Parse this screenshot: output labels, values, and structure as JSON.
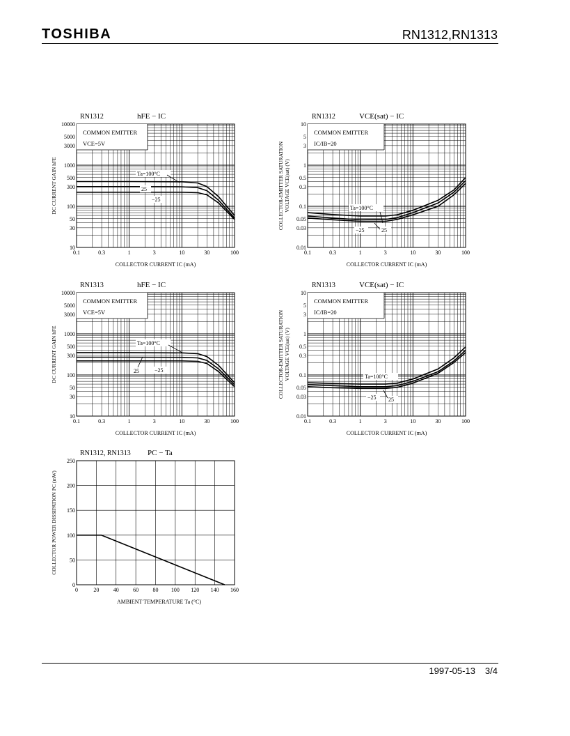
{
  "header": {
    "brand": "TOSHIBA",
    "part": "RN1312,RN1313"
  },
  "footer": {
    "date": "1997-05-13",
    "page": "3/4"
  },
  "chart_data": [
    {
      "id": "c1",
      "type": "line",
      "device": "RN1312",
      "title": "hFE − IC",
      "xlabel": "COLLECTOR CURRENT  IC  (mA)",
      "ylabel": "DC CURRENT GAIN  hFE",
      "xscale": "log",
      "yscale": "log",
      "xlim": [
        0.1,
        100
      ],
      "ylim": [
        10,
        10000
      ],
      "xticks": [
        0.1,
        0.3,
        1,
        3,
        10,
        30,
        100
      ],
      "xticklabels": [
        "0.1",
        "0.3",
        "1",
        "3",
        "10",
        "30",
        "100"
      ],
      "yticks": [
        10,
        30,
        50,
        100,
        300,
        500,
        1000,
        3000,
        5000,
        10000
      ],
      "yticklabels": [
        "10",
        "30",
        "50",
        "100",
        "300",
        "500",
        "1000",
        "3000",
        "5000",
        "10000"
      ],
      "annotations": [
        "COMMON EMITTER",
        "VCE=5V"
      ],
      "series": [
        {
          "name": "Ta=100°C",
          "x": [
            0.1,
            1,
            10,
            20,
            30,
            50,
            100
          ],
          "y": [
            400,
            400,
            395,
            370,
            300,
            170,
            60
          ]
        },
        {
          "name": "25",
          "x": [
            0.1,
            1,
            10,
            20,
            30,
            50,
            100
          ],
          "y": [
            300,
            300,
            298,
            285,
            240,
            140,
            52
          ]
        },
        {
          "name": "−25",
          "x": [
            0.1,
            1,
            10,
            20,
            30,
            50,
            100
          ],
          "y": [
            220,
            220,
            220,
            215,
            190,
            120,
            48
          ]
        }
      ]
    },
    {
      "id": "c2",
      "type": "line",
      "device": "RN1312",
      "title": "VCE(sat) − IC",
      "xlabel": "COLLECTOR CURRENT  IC  (mA)",
      "ylabel": "COLLECTOR-EMITTER SATURATION VOLTAGE  VCE(sat)  (V)",
      "xscale": "log",
      "yscale": "log",
      "xlim": [
        0.1,
        100
      ],
      "ylim": [
        0.01,
        10
      ],
      "xticks": [
        0.1,
        0.3,
        1,
        3,
        10,
        30,
        100
      ],
      "xticklabels": [
        "0.1",
        "0.3",
        "1",
        "3",
        "10",
        "30",
        "100"
      ],
      "yticks": [
        0.01,
        0.03,
        0.05,
        0.1,
        0.3,
        0.5,
        1,
        3,
        5,
        10
      ],
      "yticklabels": [
        "0.01",
        "0.03",
        "0.05",
        "0.1",
        "0.3",
        "0.5",
        "1",
        "3",
        "5",
        "10"
      ],
      "annotations": [
        "COMMON EMITTER",
        "IC/IB=20"
      ],
      "series": [
        {
          "name": "Ta=100°C",
          "x": [
            0.1,
            0.3,
            1,
            3,
            5,
            10,
            30,
            60,
            100
          ],
          "y": [
            0.07,
            0.063,
            0.058,
            0.058,
            0.062,
            0.08,
            0.14,
            0.25,
            0.5
          ]
        },
        {
          "name": "25",
          "x": [
            0.1,
            0.3,
            1,
            3,
            5,
            10,
            30,
            60,
            100
          ],
          "y": [
            0.058,
            0.052,
            0.047,
            0.048,
            0.053,
            0.07,
            0.12,
            0.22,
            0.42
          ]
        },
        {
          "name": "−25",
          "x": [
            0.1,
            0.3,
            1,
            3,
            5,
            10,
            30,
            60,
            100
          ],
          "y": [
            0.052,
            0.047,
            0.043,
            0.043,
            0.048,
            0.062,
            0.1,
            0.19,
            0.36
          ]
        }
      ]
    },
    {
      "id": "c3",
      "type": "line",
      "device": "RN1313",
      "title": "hFE − IC",
      "xlabel": "COLLECTOR CURRENT  IC  (mA)",
      "ylabel": "DC CURRENT GAIN  hFE",
      "xscale": "log",
      "yscale": "log",
      "xlim": [
        0.1,
        100
      ],
      "ylim": [
        10,
        10000
      ],
      "xticks": [
        0.1,
        0.3,
        1,
        3,
        10,
        30,
        100
      ],
      "xticklabels": [
        "0.1",
        "0.3",
        "1",
        "3",
        "10",
        "30",
        "100"
      ],
      "yticks": [
        10,
        30,
        50,
        100,
        300,
        500,
        1000,
        3000,
        5000,
        10000
      ],
      "yticklabels": [
        "10",
        "30",
        "50",
        "100",
        "300",
        "500",
        "1000",
        "3000",
        "5000",
        "10000"
      ],
      "annotations": [
        "COMMON EMITTER",
        "VCE=5V"
      ],
      "series": [
        {
          "name": "Ta=100°C",
          "x": [
            0.1,
            1,
            10,
            20,
            30,
            50,
            100
          ],
          "y": [
            350,
            350,
            345,
            330,
            280,
            170,
            65
          ]
        },
        {
          "name": "25",
          "x": [
            0.1,
            1,
            10,
            20,
            30,
            50,
            100
          ],
          "y": [
            270,
            270,
            268,
            260,
            225,
            140,
            58
          ]
        },
        {
          "name": "−25",
          "x": [
            0.1,
            1,
            10,
            20,
            30,
            50,
            100
          ],
          "y": [
            220,
            220,
            220,
            215,
            190,
            120,
            52
          ]
        }
      ]
    },
    {
      "id": "c4",
      "type": "line",
      "device": "RN1313",
      "title": "VCE(sat) − IC",
      "xlabel": "COLLECTOR CURRENT  IC  (mA)",
      "ylabel": "COLLECTOR-EMITTER SATURATION VOLTAGE  VCE(sat)  (V)",
      "xscale": "log",
      "yscale": "log",
      "xlim": [
        0.1,
        100
      ],
      "ylim": [
        0.01,
        10
      ],
      "xticks": [
        0.1,
        0.3,
        1,
        3,
        10,
        30,
        100
      ],
      "xticklabels": [
        "0.1",
        "0.3",
        "1",
        "3",
        "10",
        "30",
        "100"
      ],
      "yticks": [
        0.01,
        0.03,
        0.05,
        0.1,
        0.3,
        0.5,
        1,
        3,
        5,
        10
      ],
      "yticklabels": [
        "0.01",
        "0.03",
        "0.05",
        "0.1",
        "0.3",
        "0.5",
        "1",
        "3",
        "5",
        "10"
      ],
      "annotations": [
        "COMMON EMITTER",
        "IC/IB=20"
      ],
      "series": [
        {
          "name": "Ta=100°C",
          "x": [
            0.1,
            0.3,
            1,
            3,
            5,
            10,
            30,
            60,
            100
          ],
          "y": [
            0.065,
            0.062,
            0.06,
            0.06,
            0.063,
            0.08,
            0.14,
            0.26,
            0.48
          ]
        },
        {
          "name": "25",
          "x": [
            0.1,
            0.3,
            1,
            3,
            5,
            10,
            30,
            60,
            100
          ],
          "y": [
            0.058,
            0.055,
            0.052,
            0.052,
            0.055,
            0.07,
            0.12,
            0.22,
            0.4
          ]
        },
        {
          "name": "−25",
          "x": [
            0.1,
            0.3,
            1,
            3,
            5,
            10,
            30,
            60,
            100
          ],
          "y": [
            0.052,
            0.049,
            0.047,
            0.047,
            0.05,
            0.063,
            0.11,
            0.2,
            0.35
          ]
        }
      ]
    },
    {
      "id": "c5",
      "type": "line",
      "device": "RN1312, RN1313",
      "title": "PC − Ta",
      "xlabel": "AMBIENT TEMPERATURE   Ta (°C)",
      "ylabel": "COLLECTOR POWER DISSIPATION  PC  (mW)",
      "xscale": "linear",
      "yscale": "linear",
      "xlim": [
        0,
        160
      ],
      "ylim": [
        0,
        250
      ],
      "xticks": [
        0,
        20,
        40,
        60,
        80,
        100,
        120,
        140,
        160
      ],
      "xticklabels": [
        "0",
        "20",
        "40",
        "60",
        "80",
        "100",
        "120",
        "140",
        "160"
      ],
      "yticks": [
        0,
        50,
        100,
        150,
        200,
        250
      ],
      "yticklabels": [
        "0",
        "50",
        "100",
        "150",
        "200",
        "250"
      ],
      "annotations": [],
      "series": [
        {
          "name": "",
          "x": [
            0,
            25,
            150
          ],
          "y": [
            100,
            100,
            0
          ]
        }
      ]
    }
  ]
}
